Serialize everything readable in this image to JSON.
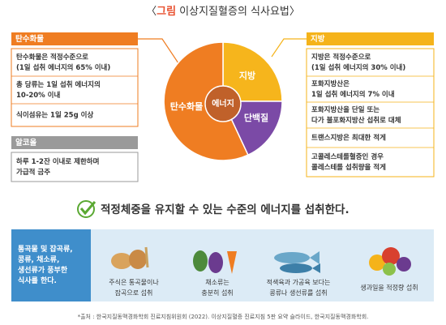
{
  "title": {
    "open": "〈",
    "label": "그림",
    "text": " 이상지질혈증의 식사요법",
    "close": "〉"
  },
  "left": {
    "sections": [
      {
        "heading": "탄수화물",
        "items": [
          [
            "탄수화물은 적정수준으로",
            "(1일 섭취 에너지의 65% 이내)"
          ],
          [
            "총 당류는 1일 섭취 에너지의",
            "10-20% 이내"
          ],
          [
            "식이섬유는 1일 25g 이상"
          ]
        ]
      },
      {
        "heading": "알코올",
        "items": [
          [
            "하루 1-2잔 이내로 제한하며",
            "가급적 금주"
          ]
        ]
      }
    ]
  },
  "pie": {
    "carbohydrate": "탄수화물",
    "fat": "지방",
    "protein": "단백질",
    "center": "에너지"
  },
  "right": {
    "heading": "지방",
    "items": [
      [
        "지방은 적정수준으로",
        "(1일 섭취 에너지의 30% 이내)"
      ],
      [
        "포화지방산은",
        "1일 섭취 에너지의 7% 이내"
      ],
      [
        "포화지방산을 단일 또는",
        "다가 불포화지방산 섭취로 대체"
      ],
      [
        "트랜스지방은 최대한 적게"
      ],
      [
        "고콜레스테롤혈증인 경우",
        "콜레스테롤 섭취량을 적게"
      ]
    ]
  },
  "message": "적정체중을 유지할 수 있는 수준의 에너지를 섭취한다.",
  "recommendation": {
    "heading": [
      "통곡물 및 잡곡류,",
      "콩류, 채소류,",
      "생선류가 풍부한",
      "식사를 한다."
    ],
    "items": [
      [
        "주식은 통곡물이나",
        "잡곡으로 섭취"
      ],
      [
        "채소류는",
        "충분히 섭취"
      ],
      [
        "적색육과 가공육 보다는",
        "콩류나 생선류를 섭취"
      ],
      [
        "생과일을 적정량 섭취"
      ]
    ]
  },
  "source": "*출처 : 한국지질동맥경화학회 진료지침위원회 (2022). 이상지질혈증 진료지침 5판 요약 슬라이드, 한국지질동맥경화학회."
}
